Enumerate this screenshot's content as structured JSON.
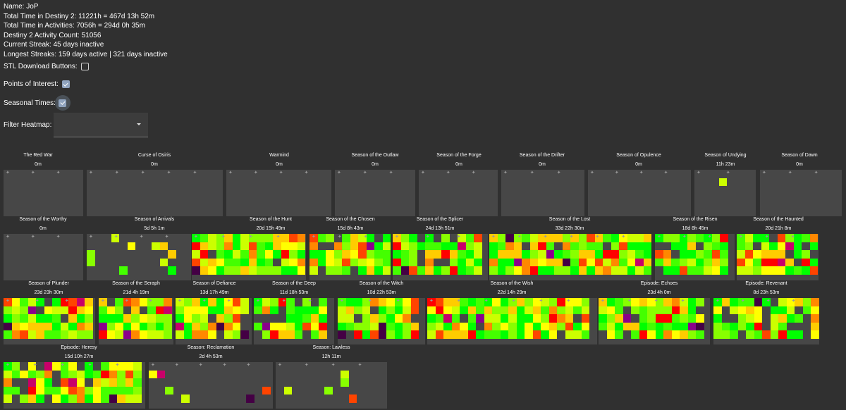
{
  "profile": {
    "name": "Name: JoP",
    "total_time": "Total Time in Destiny 2: 11221h = 467d 13h 52m",
    "activities_time": "Total Time in Activities: 7056h = 294d 0h 35m",
    "activity_count": "Destiny 2 Activity Count: 51056",
    "current_streak": "Current Streak: 45 days inactive",
    "longest_streaks": "Longest Streaks: 159 days active | 321 days inactive"
  },
  "options": {
    "stl_label": "STL Download Buttons:",
    "stl_checked": false,
    "poi_label": "Points of Interest:",
    "poi_checked": true,
    "seasonal_label": "Seasonal Times:",
    "seasonal_checked": true,
    "filter_label": "Filter Heatmap:",
    "filter_value": ""
  },
  "colors": {
    "empty": "#474747",
    "scale": [
      "#00ff00",
      "#44ff00",
      "#88ff00",
      "#ccff00",
      "#ffff00",
      "#ffcc00",
      "#ff8800",
      "#ff4400",
      "#ff0000",
      "#c8006a",
      "#8b008b",
      "#440044"
    ]
  },
  "seasons": [
    {
      "name": "The Red War",
      "time": "0m",
      "fill": 0,
      "seed": 1
    },
    {
      "name": "Curse of Osiris",
      "time": "0m",
      "fill": 0,
      "seed": 2
    },
    {
      "name": "Warmind",
      "time": "0m",
      "fill": 0,
      "seed": 3
    },
    {
      "name": "Season of the Outlaw",
      "time": "0m",
      "fill": 0,
      "seed": 4
    },
    {
      "name": "Season of the Forge",
      "time": "0m",
      "fill": 0,
      "seed": 5
    },
    {
      "name": "Season of the Drifter",
      "time": "0m",
      "fill": 0,
      "seed": 6
    },
    {
      "name": "Season of Opulence",
      "time": "0m",
      "fill": 0,
      "seed": 7
    },
    {
      "name": "Season of Undying",
      "time": "11h 23m",
      "fill": 0.08,
      "seed": 8
    },
    {
      "name": "Season of Dawn",
      "time": "0m",
      "fill": 0,
      "seed": 9
    },
    {
      "name": "Season of the Worthy",
      "time": "0m",
      "fill": 0,
      "seed": 10
    },
    {
      "name": "Season of Arrivals",
      "time": "5d 5h 1m",
      "fill": 0.25,
      "seed": 11
    },
    {
      "name": "Season of the Hunt",
      "time": "20d 15h 49m",
      "fill": 0.95,
      "seed": 12
    },
    {
      "name": "Season of the Chosen",
      "time": "15d 8h 43m",
      "fill": 0.9,
      "seed": 13
    },
    {
      "name": "Season of the Splicer",
      "time": "24d 13h 51m",
      "fill": 0.95,
      "seed": 14
    },
    {
      "name": "Season of the Lost",
      "time": "33d 22h 30m",
      "fill": 0.97,
      "seed": 15
    },
    {
      "name": "Season of the Risen",
      "time": "18d 8h 45m",
      "fill": 0.92,
      "seed": 16
    },
    {
      "name": "Season of the Haunted",
      "time": "20d 21h 8m",
      "fill": 0.95,
      "seed": 17
    },
    {
      "name": "Season of Plunder",
      "time": "23d 23h 30m",
      "fill": 0.95,
      "seed": 18
    },
    {
      "name": "Season of the Seraph",
      "time": "21d 4h 19m",
      "fill": 0.95,
      "seed": 19
    },
    {
      "name": "Season of Defiance",
      "time": "13d 17h 49m",
      "fill": 0.9,
      "seed": 20
    },
    {
      "name": "Season of the Deep",
      "time": "11d 18h 53m",
      "fill": 0.88,
      "seed": 21
    },
    {
      "name": "Season of the Witch",
      "time": "10d 22h 53m",
      "fill": 0.85,
      "seed": 22
    },
    {
      "name": "Season of the Wish",
      "time": "22d 14h 29m",
      "fill": 0.95,
      "seed": 23
    },
    {
      "name": "Episode: Echoes",
      "time": "23d 4h 0m",
      "fill": 0.95,
      "seed": 24
    },
    {
      "name": "Episode: Revenant",
      "time": "8d 23h 53m",
      "fill": 0.88,
      "seed": 25
    },
    {
      "name": "Episode: Heresy",
      "time": "15d 10h 27m",
      "fill": 0.85,
      "seed": 26
    },
    {
      "name": "Season: Reclamation",
      "time": "2d 4h 53m",
      "fill": 0.12,
      "seed": 27
    },
    {
      "name": "Season: Lawless",
      "time": "12h 11m",
      "fill": 0.05,
      "seed": 28
    }
  ]
}
